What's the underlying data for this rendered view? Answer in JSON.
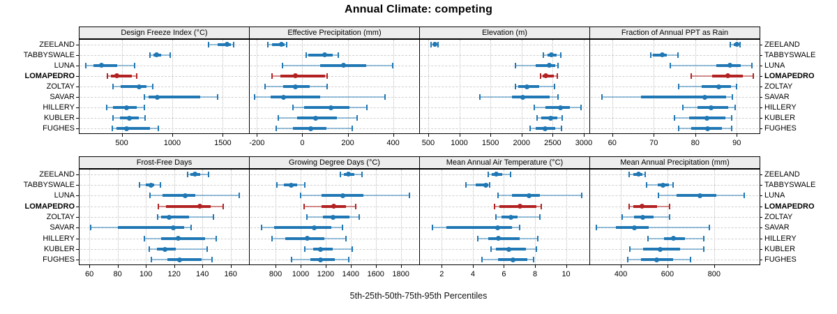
{
  "chart_data": {
    "type": "dotplot",
    "title": "Annual Climate: competing",
    "caption": "5th-25th-50th-75th-95th Percentiles",
    "percentiles": [
      5,
      25,
      50,
      75,
      95
    ],
    "legend_position": "none",
    "grid": true,
    "categories": [
      "ZEELAND",
      "TABBYSWALE",
      "LUNA",
      "LOMAPEDRO",
      "ZOLTAY",
      "SAVAR",
      "HILLERY",
      "KUBLER",
      "FUGHES"
    ],
    "highlight_category": "LOMAPEDRO",
    "colors": {
      "series": "#1f77b4",
      "series_light": "rgba(31,119,180,0.45)",
      "highlight": "#b22222",
      "highlight_light": "rgba(178,34,34,0.5)",
      "strip_bg": "#ededed",
      "gridline": "#c8c8c8"
    },
    "panels": [
      {
        "title": "Design Freeze Index (°C)",
        "row": 0,
        "col": 0,
        "xlim": [
          75,
          1760
        ],
        "ticks": [
          500,
          1000,
          1500
        ],
        "values": [
          [
            1360,
            1450,
            1545,
            1580,
            1610
          ],
          [
            780,
            815,
            845,
            890,
            980
          ],
          [
            145,
            220,
            300,
            455,
            625
          ],
          [
            360,
            390,
            450,
            600,
            645
          ],
          [
            410,
            490,
            670,
            745,
            810
          ],
          [
            725,
            765,
            855,
            1275,
            1450
          ],
          [
            350,
            410,
            550,
            645,
            725
          ],
          [
            415,
            480,
            575,
            670,
            730
          ],
          [
            405,
            450,
            545,
            780,
            860
          ]
        ]
      },
      {
        "title": "Effective Precipitation (mm)",
        "row": 0,
        "col": 1,
        "xlim": [
          -235,
          515
        ],
        "ticks": [
          -200,
          0,
          200,
          400
        ],
        "values": [
          [
            -153,
            -135,
            -93,
            -78,
            -70
          ],
          [
            18,
            25,
            100,
            133,
            158
          ],
          [
            -88,
            80,
            180,
            280,
            398
          ],
          [
            -135,
            -98,
            -31,
            100,
            110
          ],
          [
            -163,
            -84,
            -31,
            31,
            109
          ],
          [
            -211,
            -140,
            -84,
            79,
            363
          ],
          [
            -42,
            9,
            126,
            209,
            284
          ],
          [
            -105,
            -23,
            60,
            153,
            242
          ],
          [
            -116,
            -42,
            37,
            107,
            220
          ]
        ]
      },
      {
        "title": "Elevation (m)",
        "row": 0,
        "col": 2,
        "xlim": [
          355,
          3090
        ],
        "ticks": [
          500,
          1000,
          1500,
          2000,
          2500,
          3000
        ],
        "values": [
          [
            540,
            575,
            605,
            635,
            660
          ],
          [
            2355,
            2420,
            2480,
            2560,
            2630
          ],
          [
            1905,
            2230,
            2440,
            2540,
            2590
          ],
          [
            2300,
            2340,
            2390,
            2520,
            2575
          ],
          [
            1905,
            1950,
            2090,
            2285,
            2525
          ],
          [
            1325,
            1850,
            2025,
            2450,
            2580
          ],
          [
            2200,
            2380,
            2630,
            2780,
            2960
          ],
          [
            2250,
            2320,
            2470,
            2580,
            2655
          ],
          [
            2135,
            2230,
            2380,
            2545,
            2645
          ]
        ]
      },
      {
        "title": "Fraction of Annual PPT as Rain",
        "row": 0,
        "col": 3,
        "xlim": [
          54.5,
          95.5
        ],
        "ticks": [
          60,
          70,
          80,
          90
        ],
        "values": [
          [
            88.5,
            89.2,
            90.0,
            90.4,
            90.8
          ],
          [
            69.3,
            69.8,
            72.1,
            73.1,
            75.8
          ],
          [
            74.0,
            85.0,
            88.4,
            91.0,
            93.7
          ],
          [
            79.0,
            84.0,
            87.8,
            91.4,
            94.0
          ],
          [
            76.0,
            81.5,
            85.7,
            88.6,
            90.0
          ],
          [
            57.5,
            67.0,
            82.3,
            87.5,
            89.0
          ],
          [
            77.0,
            80.6,
            83.8,
            88.0,
            89.7
          ],
          [
            75.0,
            78.6,
            82.8,
            87.2,
            88.8
          ],
          [
            76.0,
            79.0,
            82.9,
            86.4,
            88.7
          ]
        ]
      },
      {
        "title": "Frost-Free Days",
        "row": 1,
        "col": 0,
        "xlim": [
          52.5,
          173
        ],
        "ticks": [
          60,
          80,
          100,
          120,
          140,
          160
        ],
        "values": [
          [
            129.5,
            131.5,
            134.5,
            138.5,
            144.5
          ],
          [
            95.5,
            100,
            103.5,
            106,
            110.5
          ],
          [
            103,
            112,
            128,
            135,
            166
          ],
          [
            109,
            114,
            138,
            146,
            154.5
          ],
          [
            108.5,
            111,
            116.5,
            130.5,
            148
          ],
          [
            61,
            80,
            119.5,
            127,
            132
          ],
          [
            99,
            111,
            123,
            142,
            150
          ],
          [
            102.5,
            108,
            113.5,
            121,
            143.5
          ],
          [
            104,
            115,
            124,
            139.5,
            147
          ]
        ]
      },
      {
        "title": "Growing Degree Days (°C)",
        "row": 1,
        "col": 1,
        "xlim": [
          588,
          1947
        ],
        "ticks": [
          800,
          1000,
          1200,
          1400,
          1600,
          1800
        ],
        "values": [
          [
            1320,
            1348,
            1380,
            1430,
            1490
          ],
          [
            810,
            865,
            927,
            973,
            1035
          ],
          [
            1000,
            1165,
            1335,
            1500,
            1870
          ],
          [
            1030,
            1170,
            1265,
            1360,
            1440
          ],
          [
            1050,
            1180,
            1260,
            1390,
            1470
          ],
          [
            687,
            790,
            1110,
            1245,
            1335
          ],
          [
            770,
            880,
            1055,
            1190,
            1360
          ],
          [
            1035,
            1100,
            1160,
            1255,
            1410
          ],
          [
            930,
            1080,
            1160,
            1273,
            1382
          ]
        ]
      },
      {
        "title": "Mean Annual Air Temperature (°C)",
        "row": 1,
        "col": 2,
        "xlim": [
          0.55,
          11.5
        ],
        "ticks": [
          2,
          4,
          6,
          8,
          10
        ],
        "values": [
          [
            5.0,
            5.2,
            5.5,
            5.9,
            6.45
          ],
          [
            3.55,
            4.2,
            4.85,
            5.0,
            5.1
          ],
          [
            5.6,
            6.5,
            7.6,
            8.3,
            11.0
          ],
          [
            5.4,
            5.7,
            7.05,
            8.1,
            8.4
          ],
          [
            5.5,
            5.85,
            6.45,
            6.9,
            8.3
          ],
          [
            1.4,
            2.3,
            5.6,
            6.5,
            7.0
          ],
          [
            4.3,
            5.0,
            5.65,
            7.0,
            8.2
          ],
          [
            5.15,
            5.5,
            6.3,
            7.4,
            8.1
          ],
          [
            4.6,
            5.6,
            6.6,
            7.5,
            7.9
          ]
        ]
      },
      {
        "title": "Mean Annual Precipitation (mm)",
        "row": 1,
        "col": 3,
        "xlim": [
          265,
          995
        ],
        "ticks": [
          400,
          600,
          800
        ],
        "values": [
          [
            435,
            452,
            477,
            492,
            503
          ],
          [
            510,
            558,
            582,
            605,
            625
          ],
          [
            560,
            640,
            740,
            810,
            930
          ],
          [
            435,
            452,
            490,
            555,
            610
          ],
          [
            405,
            455,
            495,
            540,
            610
          ],
          [
            295,
            380,
            457,
            520,
            780
          ],
          [
            515,
            585,
            625,
            675,
            755
          ],
          [
            440,
            495,
            570,
            655,
            755
          ],
          [
            430,
            485,
            555,
            625,
            700
          ]
        ]
      }
    ]
  }
}
